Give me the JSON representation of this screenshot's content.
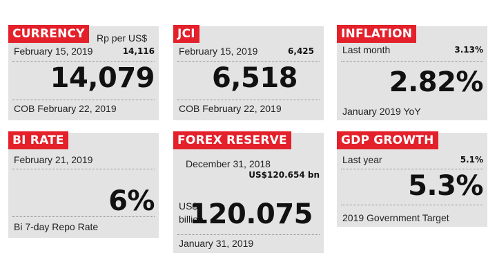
{
  "cards": {
    "currency": {
      "title": "CURRENCY",
      "unit": "Rp per US$",
      "prev_date": "February 15, 2019",
      "prev_value": "14,116",
      "value": "14,079",
      "footer": "COB February 22, 2019"
    },
    "jci": {
      "title": "JCI",
      "prev_date": "February 15, 2019",
      "prev_value": "6,425",
      "value": "6,518",
      "footer": "COB February 22, 2019"
    },
    "inflation": {
      "title": "INFLATION",
      "prev_label": "Last month",
      "prev_value": "3.13%",
      "value": "2.82%",
      "footer": "January 2019 YoY"
    },
    "bi_rate": {
      "title": "BI RATE",
      "date": "February 21, 2019",
      "value": "6%",
      "footer": "Bi 7-day Repo Rate"
    },
    "forex": {
      "title": "FOREX RESERVE",
      "prev_date": "December 31, 2018",
      "prev_value": "US$120.654 bn",
      "unit_line1": "US$",
      "unit_line2": "billion",
      "value": "120.075",
      "footer": "January 31, 2019"
    },
    "gdp": {
      "title": "GDP GROWTH",
      "prev_label": "Last year",
      "prev_value": "5.1%",
      "value": "5.3%",
      "footer": "2019 Government Target"
    }
  }
}
